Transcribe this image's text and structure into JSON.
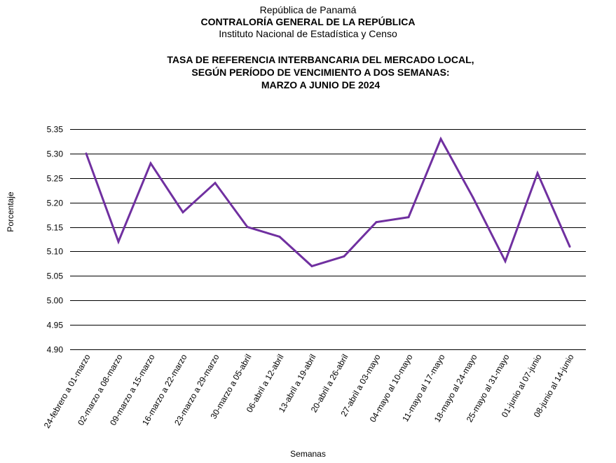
{
  "header": {
    "line1": "República de Panamá",
    "line2": "CONTRALORÍA GENERAL DE LA REPÚBLICA",
    "line3": "Instituto Nacional de Estadística y Censo"
  },
  "chart_data": {
    "type": "line",
    "title_lines": [
      "TASA DE REFERENCIA INTERBANCARIA DEL MERCADO LOCAL,",
      "SEGÚN PERÍODO DE VENCIMIENTO A DOS SEMANAS:",
      "MARZO  A JUNIO DE 2024"
    ],
    "xlabel": "Semanas",
    "ylabel": "Porcentaje",
    "ylim": [
      4.9,
      5.35
    ],
    "yticks": [
      "5.35",
      "5.30",
      "5.25",
      "5.20",
      "5.15",
      "5.10",
      "5.05",
      "5.00",
      "4.95",
      "4.90"
    ],
    "grid": true,
    "line_color": "#7030A0",
    "categories": [
      "24-febrero a 01-marzo",
      "02-marzo a 08-marzo",
      "09-marzo a 15-marzo",
      "16-marzo a 22-marzo",
      "23-marzo a 29-marzo",
      "30-marzo a 05-abril",
      "06-abril a 12-abril",
      "13-abril a 19-abril",
      "20-abril a 26-abril",
      "27-abril a 03-mayo",
      "04-mayo al 10-mayo",
      "11-mayo al 17-mayo",
      "18-mayo al 24-mayo",
      "25-mayo al 31-mayo",
      "01-junio al 07-junio",
      "08-junio al 14-junio"
    ],
    "values": [
      5.3,
      5.12,
      5.28,
      5.18,
      5.24,
      5.15,
      5.13,
      5.07,
      5.09,
      5.16,
      5.17,
      5.33,
      5.21,
      5.08,
      5.26,
      5.11
    ]
  }
}
